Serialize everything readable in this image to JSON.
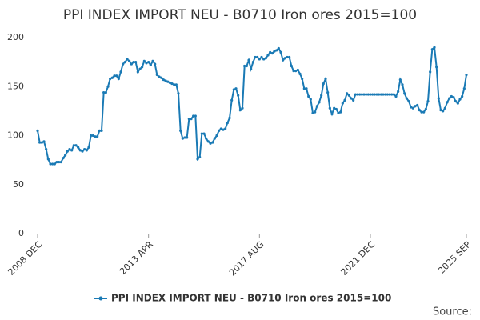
{
  "chart_data": {
    "type": "line",
    "title": "PPI INDEX IMPORT NEU - B0710 Iron ores 2015=100",
    "source": "Source:",
    "categories": [
      "2008 DEC",
      null,
      null,
      null,
      null,
      null,
      null,
      null,
      null,
      null,
      null,
      null,
      null,
      null,
      null,
      null,
      null,
      null,
      null,
      null,
      null,
      null,
      null,
      null,
      null,
      null,
      null,
      null,
      null,
      null,
      null,
      null,
      null,
      null,
      null,
      null,
      null,
      null,
      null,
      null,
      null,
      null,
      null,
      null,
      null,
      null,
      null,
      null,
      null,
      null,
      null,
      null,
      "2013 APR",
      null,
      null,
      null,
      null,
      null,
      null,
      null,
      null,
      null,
      null,
      null,
      null,
      null,
      null,
      null,
      null,
      null,
      null,
      null,
      null,
      null,
      null,
      null,
      null,
      null,
      null,
      null,
      null,
      null,
      null,
      null,
      null,
      null,
      null,
      null,
      null,
      null,
      null,
      null,
      null,
      null,
      null,
      null,
      null,
      null,
      null,
      null,
      null,
      null,
      null,
      null,
      "2017 AUG",
      null,
      null,
      null,
      null,
      null,
      null,
      null,
      null,
      null,
      null,
      null,
      null,
      null,
      null,
      null,
      null,
      null,
      null,
      null,
      null,
      null,
      null,
      null,
      null,
      null,
      null,
      null,
      null,
      null,
      null,
      null,
      null,
      null,
      null,
      null,
      null,
      null,
      null,
      null,
      null,
      null,
      null,
      null,
      null,
      null,
      null,
      null,
      null,
      null,
      null,
      null,
      "2021 DEC",
      null,
      null,
      null,
      null,
      null,
      null,
      null,
      null,
      null,
      null,
      null,
      null,
      null,
      null,
      null,
      null,
      null,
      null,
      null,
      null,
      null,
      null,
      null,
      null,
      null,
      null,
      null,
      null,
      null,
      null,
      null,
      null,
      null,
      null,
      null,
      null,
      null,
      null,
      null,
      null,
      null,
      null,
      null,
      null,
      "2025 SEP"
    ],
    "series": [
      {
        "name": "PPI INDEX IMPORT NEU - B0710 Iron ores 2015=100",
        "color": "#1a7ab5",
        "values": [
          105,
          93,
          93,
          94,
          86,
          76,
          71,
          71,
          71,
          73,
          73,
          73,
          77,
          80,
          84,
          86,
          85,
          90,
          90,
          88,
          85,
          84,
          86,
          85,
          88,
          100,
          100,
          99,
          99,
          105,
          105,
          144,
          144,
          150,
          158,
          159,
          161,
          161,
          158,
          165,
          173,
          175,
          178,
          176,
          173,
          175,
          175,
          165,
          168,
          170,
          176,
          174,
          175,
          172,
          176,
          173,
          162,
          160,
          159,
          157,
          156,
          155,
          154,
          153,
          152,
          152,
          143,
          105,
          97,
          98,
          98,
          117,
          117,
          120,
          120,
          76,
          78,
          102,
          102,
          97,
          94,
          92,
          93,
          97,
          100,
          105,
          107,
          106,
          107,
          113,
          118,
          136,
          147,
          148,
          141,
          126,
          128,
          171,
          171,
          177,
          168,
          175,
          180,
          180,
          178,
          180,
          178,
          179,
          182,
          185,
          184,
          186,
          187,
          189,
          185,
          177,
          179,
          180,
          180,
          171,
          166,
          166,
          167,
          163,
          158,
          148,
          148,
          140,
          137,
          123,
          124,
          130,
          134,
          141,
          153,
          158,
          144,
          128,
          122,
          128,
          127,
          123,
          124,
          133,
          136,
          143,
          141,
          138,
          136,
          142,
          142,
          142,
          142,
          142,
          142,
          142,
          142,
          142,
          142,
          142,
          142,
          142,
          142,
          142,
          142,
          142,
          142,
          142,
          140,
          145,
          157,
          152,
          143,
          138,
          135,
          129,
          128,
          130,
          131,
          126,
          124,
          124,
          127,
          135,
          165,
          188,
          190,
          170,
          138,
          126,
          125,
          128,
          134,
          138,
          140,
          139,
          135,
          133,
          137,
          140,
          148,
          162
        ]
      }
    ],
    "ylim": [
      0,
      200
    ],
    "yticks": [
      0,
      50,
      100,
      150,
      200
    ],
    "grid": false,
    "legend": "bottom"
  }
}
